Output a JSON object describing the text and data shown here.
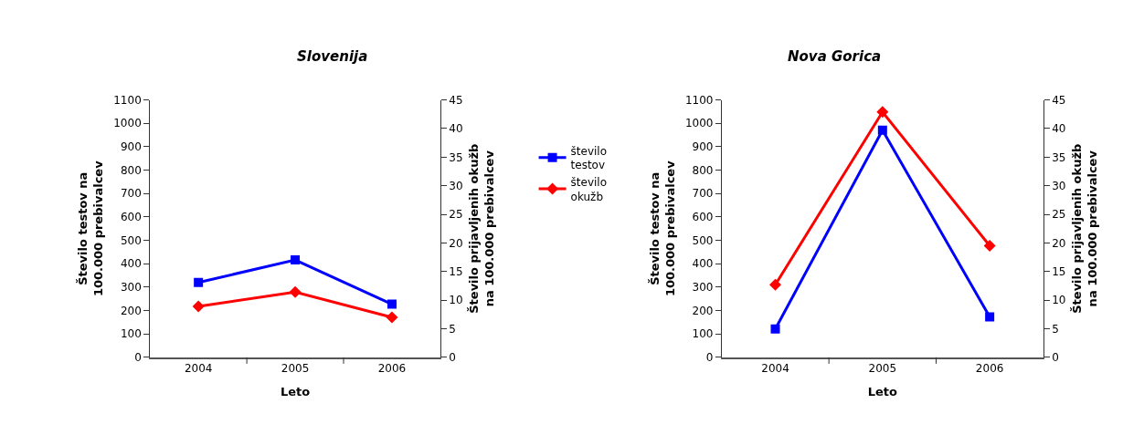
{
  "chart_data": [
    {
      "type": "line",
      "title": "Slovenija",
      "xlabel": "Leto",
      "ylabel": "Število testov na 100.000 prebivalcev",
      "y2label": "Število prijavljenih okužb na 100.000 prebivalcev",
      "categories": [
        "2004",
        "2005",
        "2006"
      ],
      "series": [
        {
          "name": "število testov",
          "color": "#0000ff",
          "marker": "square",
          "values": [
            320,
            416,
            227
          ]
        },
        {
          "name": "število okužb",
          "color": "#ff0000",
          "marker": "diamond",
          "axis": "y2",
          "values": [
            8.9,
            11.4,
            7.0
          ]
        }
      ],
      "ylim": [
        0,
        1100
      ],
      "yticks": [
        0,
        100,
        200,
        300,
        400,
        500,
        600,
        700,
        800,
        900,
        1000,
        1100
      ],
      "y2lim": [
        0,
        45
      ],
      "y2ticks": [
        0,
        5,
        10,
        15,
        20,
        25,
        30,
        35,
        40,
        45
      ],
      "grid": false,
      "legend": "right"
    },
    {
      "type": "line",
      "title": "Nova Gorica",
      "xlabel": "Leto",
      "ylabel": "Število testov na 100.000 prebivalcev",
      "y2label": "Število prijavljenih okužb na 100.000 prebivalcev",
      "categories": [
        "2004",
        "2005",
        "2006"
      ],
      "series": [
        {
          "color": "#0000ff",
          "marker": "square",
          "values": [
            121,
            971,
            173
          ]
        },
        {
          "color": "#ff0000",
          "marker": "diamond",
          "axis": "y2",
          "values": [
            12.7,
            42.9,
            19.5
          ]
        }
      ],
      "ylim": [
        0,
        1100
      ],
      "yticks": [
        0,
        100,
        200,
        300,
        400,
        500,
        600,
        700,
        800,
        900,
        1000,
        1100
      ],
      "y2lim": [
        0,
        45
      ],
      "y2ticks": [
        0,
        5,
        10,
        15,
        20,
        25,
        30,
        35,
        40,
        45
      ],
      "grid": false,
      "legend": false
    }
  ]
}
